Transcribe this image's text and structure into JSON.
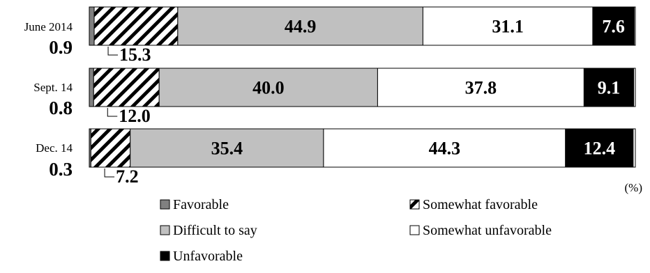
{
  "chart_data": {
    "type": "bar",
    "orientation": "horizontal",
    "stacked": true,
    "unit_label": "(%)",
    "categories": [
      "June 2014",
      "Sept. 14",
      "Dec. 14"
    ],
    "favorable_labels": [
      "0.9",
      "0.8",
      "0.3"
    ],
    "series": [
      {
        "name": "Favorable",
        "values": [
          0.9,
          0.8,
          0.3
        ],
        "fill": "#808080",
        "pattern": "solid"
      },
      {
        "name": "Somewhat favorable",
        "values": [
          15.3,
          12.0,
          7.2
        ],
        "fill": "#ffffff",
        "pattern": "diagonal-hatch"
      },
      {
        "name": "Difficult to say",
        "values": [
          44.9,
          40.0,
          35.4
        ],
        "fill": "#c0c0c0",
        "pattern": "solid"
      },
      {
        "name": "Somewhat unfavorable",
        "values": [
          31.1,
          37.8,
          44.3
        ],
        "fill": "#ffffff",
        "pattern": "solid"
      },
      {
        "name": "Unfavorable",
        "values": [
          7.6,
          9.1,
          12.4
        ],
        "fill": "#000000",
        "pattern": "solid"
      }
    ],
    "value_labels": [
      {
        "somewhat_favorable": "15.3",
        "difficult": "44.9",
        "somewhat_unfavorable": "31.1",
        "unfavorable": "7.6"
      },
      {
        "somewhat_favorable": "12.0",
        "difficult": "40.0",
        "somewhat_unfavorable": "37.8",
        "unfavorable": "9.1"
      },
      {
        "somewhat_favorable": "7.2",
        "difficult": "35.4",
        "somewhat_unfavorable": "44.3",
        "unfavorable": "12.4"
      }
    ],
    "legend": {
      "placement": "bottom",
      "items": [
        "Favorable",
        "Somewhat favorable",
        "Difficult to say",
        "Somewhat unfavorable",
        "Unfavorable"
      ]
    },
    "xlim": [
      0,
      100
    ]
  }
}
